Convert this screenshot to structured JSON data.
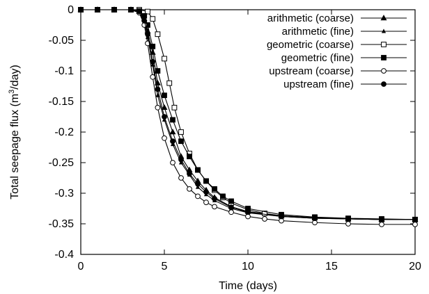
{
  "chart_data": {
    "type": "line",
    "xlabel": "Time (days)",
    "ylabel_prefix": "Total seepage flux (m",
    "ylabel_sup": "3",
    "ylabel_suffix": "/day)",
    "xlim": [
      0,
      20
    ],
    "ylim": [
      -0.4,
      0
    ],
    "xticks": [
      0,
      5,
      10,
      15,
      20
    ],
    "xtick_labels": [
      "0",
      "5",
      "10",
      "15",
      "20"
    ],
    "yticks": [
      0,
      -0.05,
      -0.1,
      -0.15,
      -0.2,
      -0.25,
      -0.3,
      -0.35,
      -0.4
    ],
    "ytick_labels": [
      "0",
      "-0.05",
      "-0.1",
      "-0.15",
      "-0.2",
      "-0.25",
      "-0.3",
      "-0.35",
      "-0.4"
    ],
    "grid": false,
    "legend_position": "top-right",
    "line_color": "#000000",
    "series": [
      {
        "name": "arithmetic (coarse)",
        "marker": "filled-triangle",
        "x": [
          0,
          1,
          2,
          3,
          3.5,
          3.8,
          4.0,
          4.3,
          4.6,
          5.0,
          5.5,
          6.0,
          6.5,
          7.0,
          7.5,
          8.0,
          9.0,
          10,
          12,
          14,
          16,
          18,
          20
        ],
        "y": [
          0,
          0,
          0,
          0,
          -0.003,
          -0.015,
          -0.035,
          -0.07,
          -0.12,
          -0.16,
          -0.2,
          -0.24,
          -0.262,
          -0.28,
          -0.295,
          -0.307,
          -0.322,
          -0.33,
          -0.337,
          -0.34,
          -0.342,
          -0.343,
          -0.343
        ]
      },
      {
        "name": "arithmetic (fine)",
        "marker": "small-filled-triangle",
        "x": [
          0,
          1,
          2,
          3,
          3.5,
          3.8,
          4.0,
          4.3,
          4.6,
          5.0,
          5.5,
          6.0,
          6.5,
          7.0,
          7.5,
          8.0,
          9.0,
          10,
          12,
          14,
          16,
          18,
          20
        ],
        "y": [
          0,
          0,
          0,
          0,
          -0.005,
          -0.02,
          -0.045,
          -0.09,
          -0.14,
          -0.18,
          -0.22,
          -0.25,
          -0.27,
          -0.29,
          -0.302,
          -0.312,
          -0.325,
          -0.332,
          -0.338,
          -0.341,
          -0.342,
          -0.343,
          -0.343
        ]
      },
      {
        "name": "geometric (coarse)",
        "marker": "open-square",
        "x": [
          0,
          1,
          2,
          3,
          3.5,
          4.0,
          4.3,
          4.6,
          5.0,
          5.3,
          5.6,
          6.0,
          6.5,
          7.0,
          7.5,
          8.0,
          8.5,
          9.0,
          10,
          11,
          12,
          14,
          16,
          18,
          20
        ],
        "y": [
          0,
          0,
          0,
          0,
          0,
          -0.003,
          -0.015,
          -0.04,
          -0.08,
          -0.12,
          -0.16,
          -0.2,
          -0.235,
          -0.262,
          -0.28,
          -0.295,
          -0.307,
          -0.316,
          -0.327,
          -0.333,
          -0.337,
          -0.34,
          -0.342,
          -0.343,
          -0.343
        ]
      },
      {
        "name": "geometric (fine)",
        "marker": "filled-square",
        "x": [
          0,
          1,
          2,
          3,
          3.5,
          3.8,
          4.0,
          4.3,
          4.6,
          5.0,
          5.5,
          6.0,
          6.5,
          7.0,
          7.5,
          8.0,
          8.5,
          9.0,
          10,
          12,
          14,
          16,
          18,
          20
        ],
        "y": [
          0,
          0,
          0,
          0,
          -0.002,
          -0.01,
          -0.025,
          -0.06,
          -0.1,
          -0.14,
          -0.18,
          -0.215,
          -0.24,
          -0.262,
          -0.28,
          -0.293,
          -0.305,
          -0.313,
          -0.325,
          -0.335,
          -0.339,
          -0.341,
          -0.342,
          -0.343
        ]
      },
      {
        "name": "upstream (coarse)",
        "marker": "open-circle",
        "x": [
          0,
          1,
          2,
          3,
          3.5,
          3.8,
          4.0,
          4.3,
          4.6,
          5.0,
          5.5,
          6.0,
          6.5,
          7.0,
          7.5,
          8.0,
          9.0,
          10,
          11,
          12,
          14,
          16,
          18,
          20
        ],
        "y": [
          0,
          0,
          0,
          0,
          -0.005,
          -0.025,
          -0.055,
          -0.11,
          -0.16,
          -0.21,
          -0.25,
          -0.275,
          -0.293,
          -0.305,
          -0.315,
          -0.322,
          -0.331,
          -0.338,
          -0.342,
          -0.345,
          -0.348,
          -0.35,
          -0.351,
          -0.351
        ]
      },
      {
        "name": "upstream (fine)",
        "marker": "filled-circle",
        "x": [
          0,
          1,
          2,
          3,
          3.5,
          3.8,
          4.0,
          4.3,
          4.6,
          5.0,
          5.5,
          6.0,
          6.5,
          7.0,
          7.5,
          8.0,
          9.0,
          10,
          12,
          14,
          16,
          18,
          20
        ],
        "y": [
          0,
          0,
          0,
          0,
          -0.003,
          -0.018,
          -0.04,
          -0.085,
          -0.13,
          -0.175,
          -0.215,
          -0.245,
          -0.268,
          -0.285,
          -0.298,
          -0.309,
          -0.323,
          -0.331,
          -0.338,
          -0.341,
          -0.342,
          -0.343,
          -0.343
        ]
      }
    ]
  }
}
